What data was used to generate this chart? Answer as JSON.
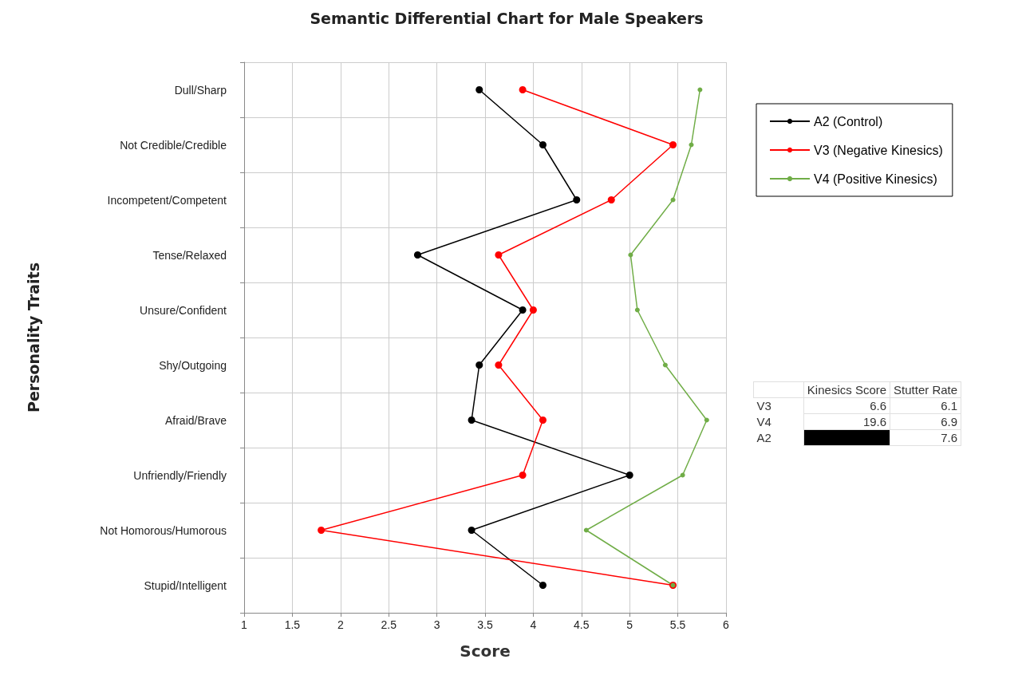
{
  "chart_data": [
    {
      "type": "line",
      "title": "Semantic Differential Chart for Male Speakers",
      "xlabel": "Score",
      "ylabel": "Personality Traits",
      "orientation": "horizontal",
      "categories": [
        "Dull/Sharp",
        "Not Credible/Credible",
        "Incompetent/Competent",
        "Tense/Relaxed",
        "Unsure/Confident",
        "Shy/Outgoing",
        "Afraid/Brave",
        "Unfriendly/Friendly",
        "Not Homorous/Humorous",
        "Stupid/Intelligent"
      ],
      "series": [
        {
          "name": "A2 (Control)",
          "color": "#000000",
          "values": [
            3.44,
            4.1,
            4.45,
            2.8,
            3.89,
            3.44,
            3.36,
            5.0,
            3.36,
            4.1
          ]
        },
        {
          "name": "V3 (Negative Kinesics)",
          "color": "#ff0000",
          "values": [
            3.89,
            5.45,
            4.81,
            3.64,
            4.0,
            3.64,
            4.1,
            3.89,
            1.8,
            5.45
          ]
        },
        {
          "name": "V4 (Positive Kinesics)",
          "color": "#70ad47",
          "values": [
            5.73,
            5.64,
            5.45,
            5.01,
            5.08,
            5.37,
            5.8,
            5.55,
            4.55,
            5.45
          ]
        }
      ],
      "xlim": [
        1,
        6
      ],
      "xticks": [
        1,
        1.5,
        2,
        2.5,
        3,
        3.5,
        4,
        4.5,
        5,
        5.5,
        6
      ],
      "grid": true,
      "legend": "right",
      "marker": "circle",
      "line_style": "solid"
    },
    {
      "type": "other",
      "categories": [
        "V3",
        "V4",
        "A2"
      ],
      "series": [
        {
          "name": "Kinesics Score",
          "values": [
            6.6,
            19.6,
            null
          ]
        },
        {
          "name": "Stutter Rate",
          "values": [
            6.1,
            6.9,
            7.6
          ]
        }
      ],
      "data_labels": true
    }
  ]
}
